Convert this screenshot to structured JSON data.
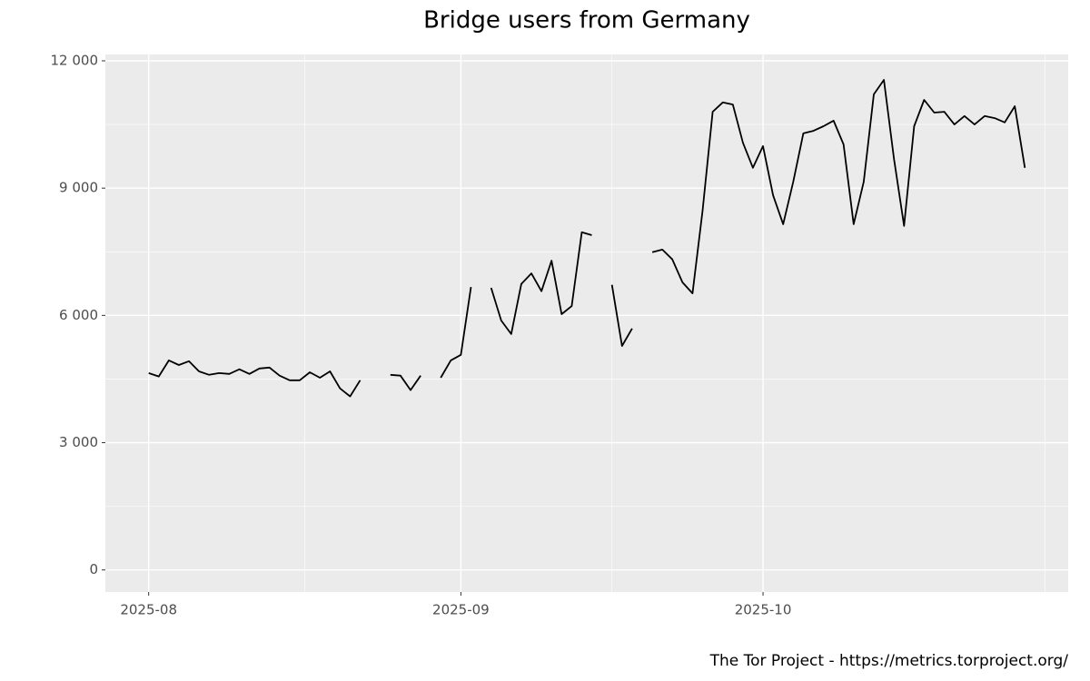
{
  "chart_data": {
    "type": "line",
    "title": "Bridge users from Germany",
    "caption": "The Tor Project - https://metrics.torproject.org/",
    "categories": [
      "2025-08",
      null,
      null,
      null,
      null,
      null,
      null,
      null,
      null,
      null,
      null,
      null,
      null,
      null,
      null,
      null,
      null,
      null,
      null,
      null,
      null,
      null,
      null,
      null,
      null,
      null,
      null,
      null,
      null,
      null,
      null,
      "2025-09",
      null,
      null,
      null,
      null,
      null,
      null,
      null,
      null,
      null,
      null,
      null,
      null,
      null,
      null,
      null,
      null,
      null,
      null,
      null,
      null,
      null,
      null,
      null,
      null,
      null,
      null,
      null,
      null,
      null,
      "2025-10",
      null,
      null,
      null,
      null,
      null,
      null,
      null,
      null,
      null,
      null,
      null,
      null,
      null,
      null,
      null,
      null,
      null,
      null,
      null,
      null,
      null,
      null,
      null,
      null,
      null,
      null
    ],
    "values": [
      4640,
      4560,
      4940,
      4830,
      4920,
      4680,
      4600,
      4640,
      4620,
      4730,
      4620,
      4750,
      4770,
      4580,
      4470,
      4470,
      4660,
      4530,
      4680,
      4280,
      4090,
      4470,
      null,
      null,
      4600,
      4580,
      4240,
      4580,
      null,
      4530,
      4940,
      5070,
      6670,
      null,
      6650,
      5880,
      5560,
      6740,
      6990,
      6570,
      7290,
      6030,
      6220,
      7960,
      7890,
      null,
      6720,
      5280,
      5690,
      null,
      7490,
      7550,
      7320,
      6780,
      6520,
      8470,
      10800,
      11020,
      10970,
      10070,
      9480,
      9990,
      8830,
      8150,
      9150,
      10290,
      10350,
      10460,
      10590,
      10030,
      8150,
      9150,
      11210,
      11550,
      9690,
      8110,
      10460,
      11080,
      10780,
      10800,
      10500,
      10700,
      10500,
      10700,
      10650,
      10550,
      10930,
      9480
    ],
    "color": "#000000",
    "ylim": [
      -520,
      12150
    ],
    "yticks": [
      0,
      {
        "value": 3000,
        "label": "3 000"
      },
      {
        "value": 6000,
        "label": "6 000"
      },
      {
        "value": 9000,
        "label": "9 000"
      },
      {
        "value": 12000,
        "label": "12 000"
      }
    ],
    "grid": true
  }
}
